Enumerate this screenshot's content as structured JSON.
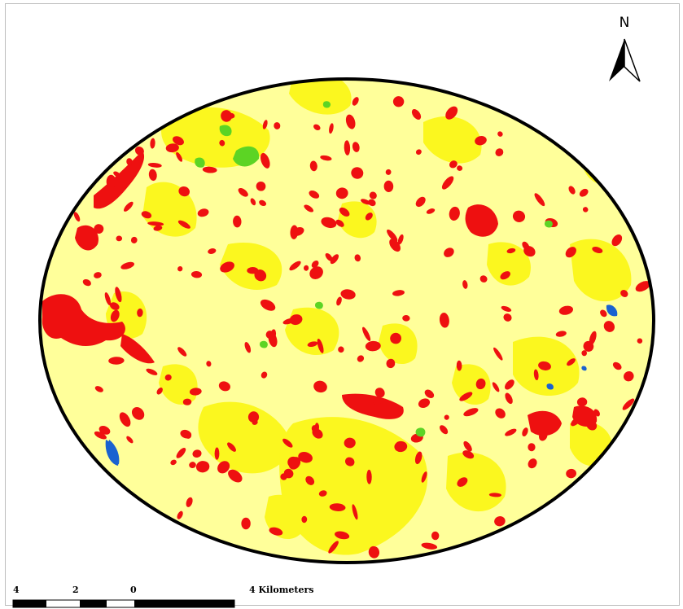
{
  "map": {
    "legend_colors": {
      "built_up": "#ee1010",
      "bare_land": "#ffff9a",
      "open_land": "#fbf71f",
      "vegetation": "#5cd424",
      "water": "#1a62d0",
      "boundary": "#000000"
    },
    "north_arrow": {
      "label": "N"
    },
    "scale_bar": {
      "ticks": [
        "4",
        "2",
        "0",
        "4 Kilometers"
      ]
    }
  }
}
